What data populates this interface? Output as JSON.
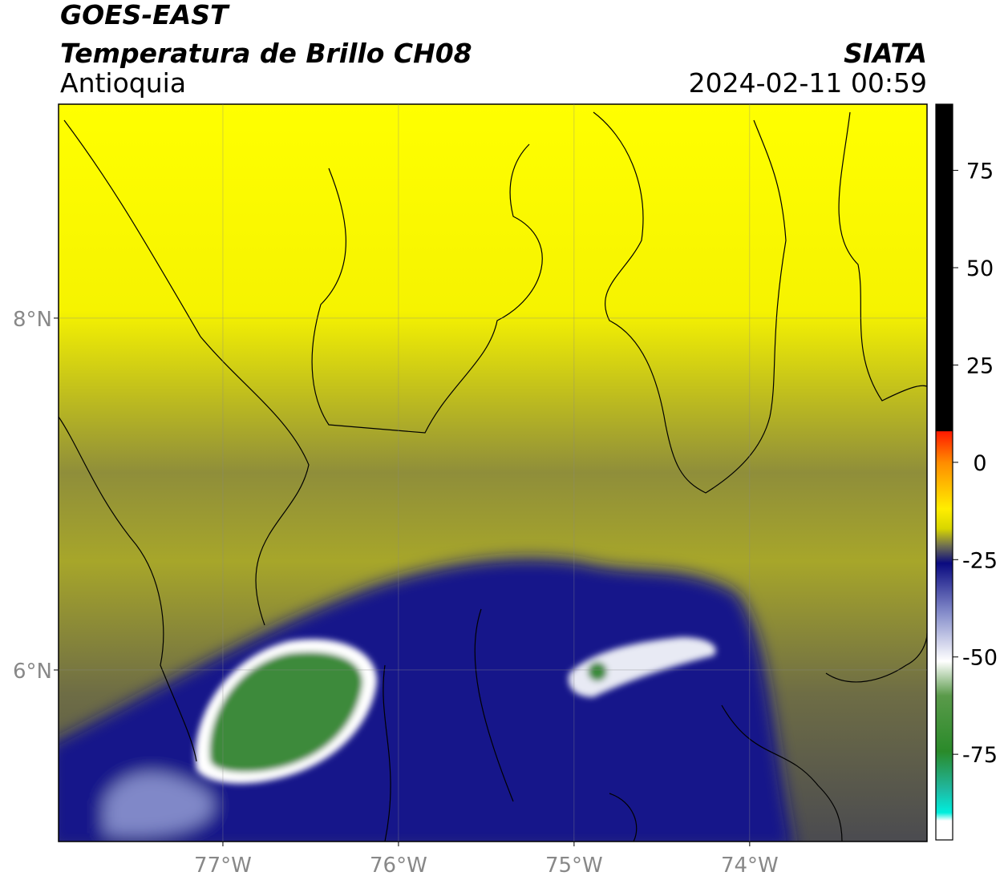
{
  "header": {
    "satellite": "GOES-EAST",
    "product": "Temperatura de Brillo CH08",
    "region": "Antioquia",
    "source": "SIATA",
    "datetime": "2024-02-11 00:59"
  },
  "map": {
    "xlim": [
      -77.936,
      -72.99
    ],
    "ylim": [
      5.025,
      9.216
    ],
    "xticks": [
      {
        "value": -77,
        "label": "77°W"
      },
      {
        "value": -76,
        "label": "76°W"
      },
      {
        "value": -75,
        "label": "75°W"
      },
      {
        "value": -74,
        "label": "74°W"
      }
    ],
    "yticks": [
      {
        "value": 8,
        "label": "8°N"
      },
      {
        "value": 6,
        "label": "6°N"
      }
    ],
    "grid": true
  },
  "colorbar": {
    "lim": [
      -97,
      92
    ],
    "ticks": [
      75,
      50,
      25,
      0,
      -25,
      -50,
      -75
    ]
  }
}
